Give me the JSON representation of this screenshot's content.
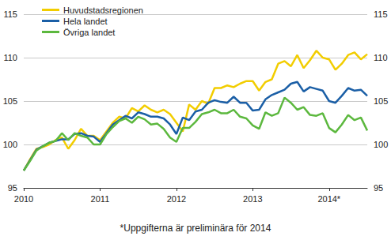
{
  "chart_data": {
    "type": "line",
    "categories": [
      "2010",
      null,
      null,
      null,
      null,
      null,
      null,
      null,
      null,
      null,
      null,
      null,
      "2011",
      null,
      null,
      null,
      null,
      null,
      null,
      null,
      null,
      null,
      null,
      null,
      "2012",
      null,
      null,
      null,
      null,
      null,
      null,
      null,
      null,
      null,
      null,
      null,
      "2013",
      null,
      null,
      null,
      null,
      null,
      null,
      null,
      null,
      null,
      null,
      null,
      "2014*",
      null,
      null,
      null,
      null,
      null,
      null
    ],
    "series": [
      {
        "name": "Huvudstadsregionen",
        "color": "#f2cd00",
        "values": [
          97,
          98.3,
          99.5,
          99.7,
          100,
          100.5,
          100.8,
          99.5,
          100.5,
          101.8,
          101,
          101,
          100.5,
          101.5,
          102.5,
          103.2,
          103,
          104.2,
          103.8,
          104.5,
          104,
          103.7,
          104,
          103.5,
          102.5,
          101.5,
          104.6,
          104,
          105,
          104.7,
          106.5,
          106.5,
          106.8,
          106.6,
          107,
          107.3,
          107.3,
          106.2,
          107.2,
          107.5,
          109.3,
          109.6,
          109,
          110.3,
          108.8,
          109.7,
          110.8,
          110,
          109.8,
          108.6,
          109.3,
          110.3,
          110.6,
          109.8,
          110.4
        ]
      },
      {
        "name": "Hela landet",
        "color": "#1b5fa6",
        "values": [
          97,
          98.2,
          99.4,
          99.8,
          100.2,
          100.4,
          100.6,
          100.6,
          101.2,
          101.3,
          101,
          100.9,
          100.3,
          101.3,
          102.3,
          102.8,
          103.3,
          103,
          103.7,
          103.5,
          103.2,
          103.2,
          103,
          102.3,
          101.2,
          103.1,
          102.8,
          103.8,
          104,
          104.8,
          105.1,
          104.9,
          104.8,
          105.5,
          104.8,
          104.8,
          103.9,
          104,
          105.2,
          105.7,
          106,
          106.3,
          107,
          107.2,
          106.1,
          106.6,
          106.4,
          106.2,
          105,
          104.8,
          105.6,
          106.5,
          106.2,
          106.3,
          105.6
        ]
      },
      {
        "name": "Övriga landet",
        "color": "#5cb83e",
        "values": [
          97,
          98.1,
          99.3,
          99.8,
          100.2,
          100.4,
          101.3,
          100.5,
          101.3,
          101,
          100.8,
          100,
          100,
          101.2,
          102,
          102.7,
          103,
          102.5,
          103.2,
          102.9,
          102.3,
          102.4,
          101.8,
          100.8,
          100.3,
          101.9,
          101.9,
          102.6,
          103.5,
          103.7,
          104,
          103.6,
          103.6,
          104,
          103.2,
          103,
          102.2,
          101.8,
          103.7,
          103.3,
          103.6,
          105.4,
          104.8,
          104,
          104.3,
          103.4,
          103.3,
          103.6,
          101.9,
          101.4,
          102.3,
          103.4,
          102.8,
          103.1,
          101.6
        ]
      }
    ],
    "ylim": [
      95,
      115
    ],
    "yticks": [
      95,
      100,
      105,
      110,
      115
    ],
    "grid": true,
    "legend": "top-left",
    "annotations": [
      "*Uppgifterna är preliminära för 2014"
    ]
  }
}
